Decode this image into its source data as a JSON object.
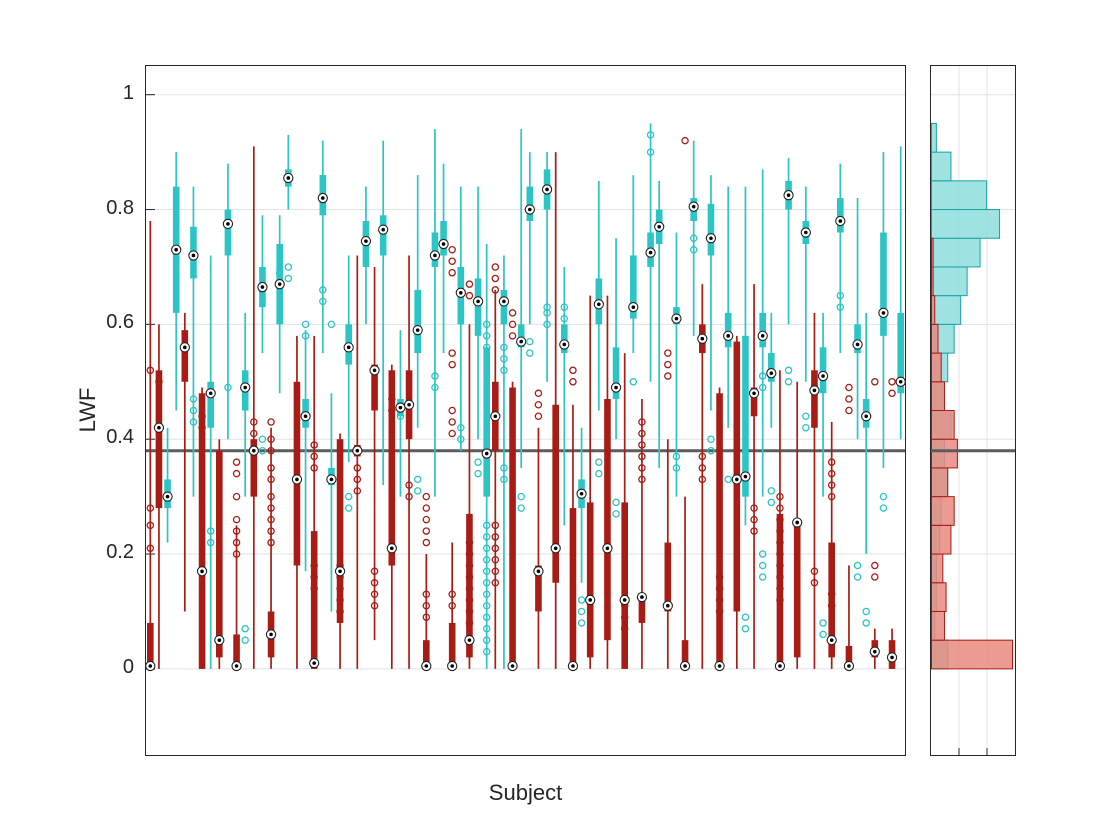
{
  "figure": {
    "background": "#ffffff",
    "axes_color": "#262626",
    "grid_color": "#e3e3e3"
  },
  "chart_data": {
    "type": "boxplot",
    "title": "",
    "xlabel": "Subject",
    "ylabel": "LWF",
    "ylim": [
      -0.15,
      1.05
    ],
    "yticks": [
      0,
      0.2,
      0.4,
      0.6,
      0.8,
      1
    ],
    "ytick_labels": [
      "0",
      "0.2",
      "0.4",
      "0.6",
      "0.8",
      "1"
    ],
    "grid": "horizontal",
    "legend": "none",
    "reference_line": {
      "y": 0.38,
      "color": "#5c5c5c",
      "width": 3
    },
    "series": [
      {
        "name": "series-cyan",
        "color": "#2cc4c5",
        "hist_fill": "#8edddd",
        "hist_edge": "#1ba2a4"
      },
      {
        "name": "series-red",
        "color": "#a81c15",
        "hist_fill": "#e98a80",
        "hist_edge": "#a81c15"
      }
    ],
    "box_format": [
      "whisker_low",
      "q1",
      "median",
      "q3",
      "whisker_high"
    ],
    "columns": [
      {
        "s": 1,
        "b": [
          0,
          0,
          0.005,
          0.08,
          0.78
        ],
        "o": [
          0.21,
          0.25,
          0.28,
          0.52
        ]
      },
      {
        "s": 1,
        "b": [
          0,
          0.28,
          0.42,
          0.52,
          0.6
        ],
        "o": [
          0.5
        ]
      },
      {
        "s": 0,
        "b": [
          0.22,
          0.28,
          0.3,
          0.33,
          0.42
        ],
        "o": []
      },
      {
        "s": 0,
        "b": [
          0.45,
          0.62,
          0.73,
          0.84,
          0.9
        ],
        "o": []
      },
      {
        "s": 1,
        "b": [
          0.1,
          0.5,
          0.56,
          0.59,
          0.62
        ],
        "o": []
      },
      {
        "s": 0,
        "b": [
          0.3,
          0.68,
          0.72,
          0.77,
          0.84
        ],
        "o": [
          0.47,
          0.45,
          0.43
        ]
      },
      {
        "s": 1,
        "b": [
          0,
          0,
          0.17,
          0.48,
          0.49
        ],
        "o": [
          0.44,
          0.42
        ]
      },
      {
        "s": 0,
        "b": [
          0,
          0.42,
          0.48,
          0.5,
          0.72
        ],
        "o": [
          0.24,
          0.22
        ]
      },
      {
        "s": 1,
        "b": [
          0,
          0.02,
          0.05,
          0.38,
          0.4
        ],
        "o": []
      },
      {
        "s": 0,
        "b": [
          0.4,
          0.72,
          0.775,
          0.8,
          0.88
        ],
        "o": [
          0.49
        ]
      },
      {
        "s": 1,
        "b": [
          0,
          0,
          0.005,
          0.06,
          0.25
        ],
        "o": [
          0.2,
          0.22,
          0.24,
          0.26,
          0.3,
          0.34,
          0.36
        ]
      },
      {
        "s": 0,
        "b": [
          0.3,
          0.45,
          0.49,
          0.52,
          0.62
        ],
        "o": [
          0.05,
          0.07
        ]
      },
      {
        "s": 1,
        "b": [
          0,
          0.3,
          0.38,
          0.4,
          0.91
        ],
        "o": [
          0.41,
          0.43
        ]
      },
      {
        "s": 0,
        "b": [
          0.55,
          0.63,
          0.665,
          0.7,
          0.79
        ],
        "o": [
          0.38,
          0.4
        ]
      },
      {
        "s": 1,
        "b": [
          0,
          0.02,
          0.06,
          0.1,
          0.42
        ],
        "o": [
          0.22,
          0.24,
          0.26,
          0.28,
          0.3,
          0.33,
          0.35,
          0.38,
          0.4,
          0.43
        ]
      },
      {
        "s": 0,
        "b": [
          0.48,
          0.6,
          0.67,
          0.74,
          0.79
        ],
        "o": [
          0.69
        ]
      },
      {
        "s": 0,
        "b": [
          0.8,
          0.84,
          0.855,
          0.87,
          0.93
        ],
        "o": [
          0.68,
          0.7
        ]
      },
      {
        "s": 1,
        "b": [
          0,
          0.18,
          0.33,
          0.5,
          0.58
        ],
        "o": []
      },
      {
        "s": 0,
        "b": [
          0.17,
          0.42,
          0.44,
          0.47,
          0.59
        ],
        "o": [
          0.58,
          0.6
        ]
      },
      {
        "s": 1,
        "b": [
          0,
          0,
          0.01,
          0.24,
          0.58
        ],
        "o": [
          0.14,
          0.16,
          0.18,
          0.35,
          0.37,
          0.39
        ]
      },
      {
        "s": 0,
        "b": [
          0.55,
          0.79,
          0.82,
          0.86,
          0.92
        ],
        "o": [
          0.64,
          0.66
        ]
      },
      {
        "s": 0,
        "b": [
          0.1,
          0.32,
          0.33,
          0.35,
          0.48
        ],
        "o": [
          0.6
        ]
      },
      {
        "s": 1,
        "b": [
          0,
          0.08,
          0.17,
          0.4,
          0.41
        ],
        "o": [
          0.1,
          0.12,
          0.14,
          0.16,
          0.18
        ]
      },
      {
        "s": 0,
        "b": [
          0.36,
          0.53,
          0.56,
          0.6,
          0.72
        ],
        "o": [
          0.28,
          0.3
        ]
      },
      {
        "s": 1,
        "b": [
          0,
          0.37,
          0.38,
          0.39,
          0.72
        ],
        "o": [
          0.31,
          0.33,
          0.35
        ]
      },
      {
        "s": 0,
        "b": [
          0.6,
          0.7,
          0.745,
          0.78,
          0.84
        ],
        "o": []
      },
      {
        "s": 1,
        "b": [
          0.05,
          0.45,
          0.52,
          0.53,
          0.7
        ],
        "o": [
          0.11,
          0.13,
          0.15,
          0.17
        ]
      },
      {
        "s": 0,
        "b": [
          0.32,
          0.72,
          0.765,
          0.79,
          0.92
        ],
        "o": []
      },
      {
        "s": 1,
        "b": [
          0,
          0.18,
          0.21,
          0.52,
          0.53
        ],
        "o": [
          0.45,
          0.47
        ]
      },
      {
        "s": 0,
        "b": [
          0.3,
          0.44,
          0.455,
          0.47,
          0.59
        ],
        "o": [
          0.44,
          0.46
        ]
      },
      {
        "s": 1,
        "b": [
          0,
          0.4,
          0.46,
          0.52,
          0.72
        ],
        "o": [
          0.3,
          0.32
        ]
      },
      {
        "s": 0,
        "b": [
          0.42,
          0.55,
          0.59,
          0.66,
          0.86
        ],
        "o": [
          0.31,
          0.33
        ]
      },
      {
        "s": 1,
        "b": [
          0,
          0,
          0.005,
          0.05,
          0.2
        ],
        "o": [
          0.09,
          0.11,
          0.13,
          0.22,
          0.24,
          0.26,
          0.28,
          0.3
        ]
      },
      {
        "s": 0,
        "b": [
          0.3,
          0.7,
          0.72,
          0.76,
          0.94
        ],
        "o": [
          0.49,
          0.51
        ]
      },
      {
        "s": 0,
        "b": [
          0.55,
          0.72,
          0.74,
          0.78,
          0.88
        ],
        "o": []
      },
      {
        "s": 1,
        "b": [
          0,
          0,
          0.005,
          0.08,
          0.22
        ],
        "o": [
          0.11,
          0.13,
          0.41,
          0.43,
          0.45,
          0.53,
          0.55,
          0.69,
          0.71,
          0.73
        ]
      },
      {
        "s": 0,
        "b": [
          0.38,
          0.6,
          0.655,
          0.7,
          0.84
        ],
        "o": [
          0.4,
          0.42
        ]
      },
      {
        "s": 1,
        "b": [
          0,
          0.02,
          0.05,
          0.27,
          0.6
        ],
        "o": [
          0.08,
          0.1,
          0.12,
          0.14,
          0.16,
          0.18,
          0.2,
          0.22,
          0.65,
          0.67
        ]
      },
      {
        "s": 0,
        "b": [
          0.4,
          0.58,
          0.64,
          0.68,
          0.84
        ],
        "o": [
          0.34,
          0.36
        ]
      },
      {
        "s": 0,
        "b": [
          0,
          0.3,
          0.375,
          0.56,
          0.74
        ],
        "o": [
          0.03,
          0.05,
          0.07,
          0.09,
          0.11,
          0.13,
          0.15,
          0.17,
          0.19,
          0.21,
          0.23,
          0.25,
          0.56,
          0.58,
          0.6
        ]
      },
      {
        "s": 1,
        "b": [
          0,
          0.38,
          0.44,
          0.5,
          0.66
        ],
        "o": [
          0.15,
          0.17,
          0.19,
          0.21,
          0.23,
          0.25,
          0.66,
          0.68,
          0.7
        ]
      },
      {
        "s": 0,
        "b": [
          0,
          0.6,
          0.64,
          0.66,
          0.72
        ],
        "o": [
          0.33,
          0.35,
          0.52,
          0.54,
          0.56
        ]
      },
      {
        "s": 1,
        "b": [
          0,
          0,
          0.005,
          0.49,
          0.5
        ],
        "o": [
          0.58,
          0.6,
          0.62
        ]
      },
      {
        "s": 0,
        "b": [
          0.35,
          0.56,
          0.57,
          0.6,
          0.94
        ],
        "o": [
          0.28,
          0.3
        ]
      },
      {
        "s": 0,
        "b": [
          0.6,
          0.78,
          0.8,
          0.84,
          0.9
        ],
        "o": [
          0.55,
          0.57
        ]
      },
      {
        "s": 1,
        "b": [
          0,
          0.1,
          0.17,
          0.18,
          0.42
        ],
        "o": [
          0.44,
          0.46,
          0.48
        ]
      },
      {
        "s": 0,
        "b": [
          0.5,
          0.8,
          0.835,
          0.87,
          0.9
        ],
        "o": [
          0.6,
          0.62,
          0.63
        ]
      },
      {
        "s": 1,
        "b": [
          0,
          0.15,
          0.21,
          0.46,
          0.9
        ],
        "o": []
      },
      {
        "s": 0,
        "b": [
          0.25,
          0.55,
          0.565,
          0.6,
          0.7
        ],
        "o": [
          0.61,
          0.63
        ]
      },
      {
        "s": 1,
        "b": [
          0,
          0,
          0.005,
          0.28,
          0.46
        ],
        "o": [
          0.5,
          0.52
        ]
      },
      {
        "s": 0,
        "b": [
          0.15,
          0.28,
          0.305,
          0.33,
          0.42
        ],
        "o": [
          0.08,
          0.1,
          0.12
        ]
      },
      {
        "s": 1,
        "b": [
          0,
          0.02,
          0.12,
          0.29,
          0.65
        ],
        "o": []
      },
      {
        "s": 0,
        "b": [
          0.45,
          0.6,
          0.635,
          0.68,
          0.85
        ],
        "o": [
          0.34,
          0.36
        ]
      },
      {
        "s": 1,
        "b": [
          0,
          0.05,
          0.21,
          0.47,
          0.65
        ],
        "o": []
      },
      {
        "s": 0,
        "b": [
          0.4,
          0.47,
          0.49,
          0.56,
          0.75
        ],
        "o": [
          0.27,
          0.29
        ]
      },
      {
        "s": 1,
        "b": [
          0,
          0,
          0.12,
          0.29,
          0.55
        ],
        "o": [
          0.07,
          0.09,
          0.11
        ]
      },
      {
        "s": 0,
        "b": [
          0.55,
          0.61,
          0.63,
          0.72,
          0.86
        ],
        "o": [
          0.5
        ]
      },
      {
        "s": 1,
        "b": [
          0,
          0.08,
          0.125,
          0.13,
          0.47
        ],
        "o": [
          0.33,
          0.35,
          0.37,
          0.39,
          0.41,
          0.43
        ]
      },
      {
        "s": 0,
        "b": [
          0.5,
          0.7,
          0.725,
          0.76,
          0.95
        ],
        "o": [
          0.9,
          0.93
        ]
      },
      {
        "s": 0,
        "b": [
          0.35,
          0.74,
          0.77,
          0.8,
          0.85
        ],
        "o": []
      },
      {
        "s": 1,
        "b": [
          0,
          0.1,
          0.11,
          0.22,
          0.4
        ],
        "o": [
          0.51,
          0.53,
          0.55
        ]
      },
      {
        "s": 0,
        "b": [
          0.3,
          0.6,
          0.61,
          0.63,
          0.76
        ],
        "o": [
          0.35,
          0.37
        ]
      },
      {
        "s": 1,
        "b": [
          0,
          0,
          0.005,
          0.05,
          0.3
        ],
        "o": [
          0.92
        ]
      },
      {
        "s": 0,
        "b": [
          0.58,
          0.78,
          0.805,
          0.82,
          0.92
        ],
        "o": [
          0.73,
          0.75
        ]
      },
      {
        "s": 1,
        "b": [
          0,
          0.55,
          0.575,
          0.6,
          0.67
        ],
        "o": [
          0.33,
          0.35,
          0.37
        ]
      },
      {
        "s": 0,
        "b": [
          0.45,
          0.72,
          0.75,
          0.81,
          0.86
        ],
        "o": [
          0.38,
          0.4
        ]
      },
      {
        "s": 1,
        "b": [
          0,
          0,
          0.005,
          0.48,
          0.49
        ],
        "o": [
          0.1,
          0.12,
          0.14,
          0.16
        ]
      },
      {
        "s": 0,
        "b": [
          0.42,
          0.56,
          0.58,
          0.62,
          0.84
        ],
        "o": [
          0.33
        ]
      },
      {
        "s": 1,
        "b": [
          0,
          0.1,
          0.33,
          0.57,
          0.58
        ],
        "o": []
      },
      {
        "s": 0,
        "b": [
          0.25,
          0.3,
          0.335,
          0.58,
          0.84
        ],
        "o": [
          0.07,
          0.09
        ]
      },
      {
        "s": 1,
        "b": [
          0,
          0.44,
          0.48,
          0.49,
          0.67
        ],
        "o": [
          0.24,
          0.26,
          0.28
        ]
      },
      {
        "s": 0,
        "b": [
          0.3,
          0.56,
          0.58,
          0.62,
          0.87
        ],
        "o": [
          0.16,
          0.18,
          0.2,
          0.49,
          0.51
        ]
      },
      {
        "s": 0,
        "b": [
          0.42,
          0.5,
          0.515,
          0.55,
          0.62
        ],
        "o": [
          0.29,
          0.31
        ]
      },
      {
        "s": 1,
        "b": [
          0,
          0,
          0.005,
          0.27,
          0.52
        ],
        "o": [
          0.12,
          0.14,
          0.16,
          0.18,
          0.2,
          0.22,
          0.24,
          0.26,
          0.28,
          0.3
        ]
      },
      {
        "s": 0,
        "b": [
          0.6,
          0.8,
          0.825,
          0.85,
          0.89
        ],
        "o": [
          0.5,
          0.52
        ]
      },
      {
        "s": 1,
        "b": [
          0,
          0.02,
          0.255,
          0.26,
          0.5
        ],
        "o": []
      },
      {
        "s": 0,
        "b": [
          0.5,
          0.74,
          0.76,
          0.78,
          0.84
        ],
        "o": [
          0.42,
          0.44
        ]
      },
      {
        "s": 1,
        "b": [
          0,
          0.42,
          0.485,
          0.52,
          0.62
        ],
        "o": [
          0.15,
          0.17
        ]
      },
      {
        "s": 0,
        "b": [
          0.3,
          0.48,
          0.51,
          0.56,
          0.62
        ],
        "o": [
          0.06,
          0.08
        ]
      },
      {
        "s": 1,
        "b": [
          0,
          0.02,
          0.05,
          0.22,
          0.43
        ],
        "o": [
          0.11,
          0.13,
          0.3,
          0.32,
          0.34,
          0.36
        ]
      },
      {
        "s": 0,
        "b": [
          0.55,
          0.76,
          0.78,
          0.82,
          0.88
        ],
        "o": [
          0.63,
          0.65
        ]
      },
      {
        "s": 1,
        "b": [
          0,
          0,
          0.005,
          0.04,
          0.18
        ],
        "o": [
          0.45,
          0.47,
          0.49
        ]
      },
      {
        "s": 0,
        "b": [
          0.4,
          0.55,
          0.565,
          0.6,
          0.82
        ],
        "o": [
          0.16,
          0.18
        ]
      },
      {
        "s": 0,
        "b": [
          0.2,
          0.42,
          0.44,
          0.47,
          0.62
        ],
        "o": [
          0.08,
          0.1
        ]
      },
      {
        "s": 1,
        "b": [
          0,
          0.02,
          0.03,
          0.05,
          0.07
        ],
        "o": [
          0.16,
          0.18,
          0.5
        ]
      },
      {
        "s": 0,
        "b": [
          0.35,
          0.58,
          0.62,
          0.76,
          0.9
        ],
        "o": [
          0.28,
          0.3
        ]
      },
      {
        "s": 1,
        "b": [
          0,
          0,
          0.02,
          0.05,
          0.07
        ],
        "o": [
          0.48,
          0.5
        ]
      },
      {
        "s": 0,
        "b": [
          0.4,
          0.48,
          0.5,
          0.62,
          0.91
        ],
        "o": []
      }
    ],
    "marginal_histogram": {
      "orientation": "horizontal",
      "bin_start": 0,
      "bin_width": 0.05,
      "counts": [
        {
          "series": 0,
          "values": [
            10,
            2,
            3,
            3,
            5,
            6,
            10,
            8,
            12,
            8,
            10,
            14,
            18,
            22,
            30,
            42,
            34,
            12,
            3
          ]
        },
        {
          "series": 1,
          "values": [
            50,
            8,
            9,
            7,
            12,
            14,
            10,
            16,
            14,
            8,
            6,
            4,
            2,
            1,
            1,
            0,
            0,
            0,
            0
          ]
        }
      ]
    }
  }
}
